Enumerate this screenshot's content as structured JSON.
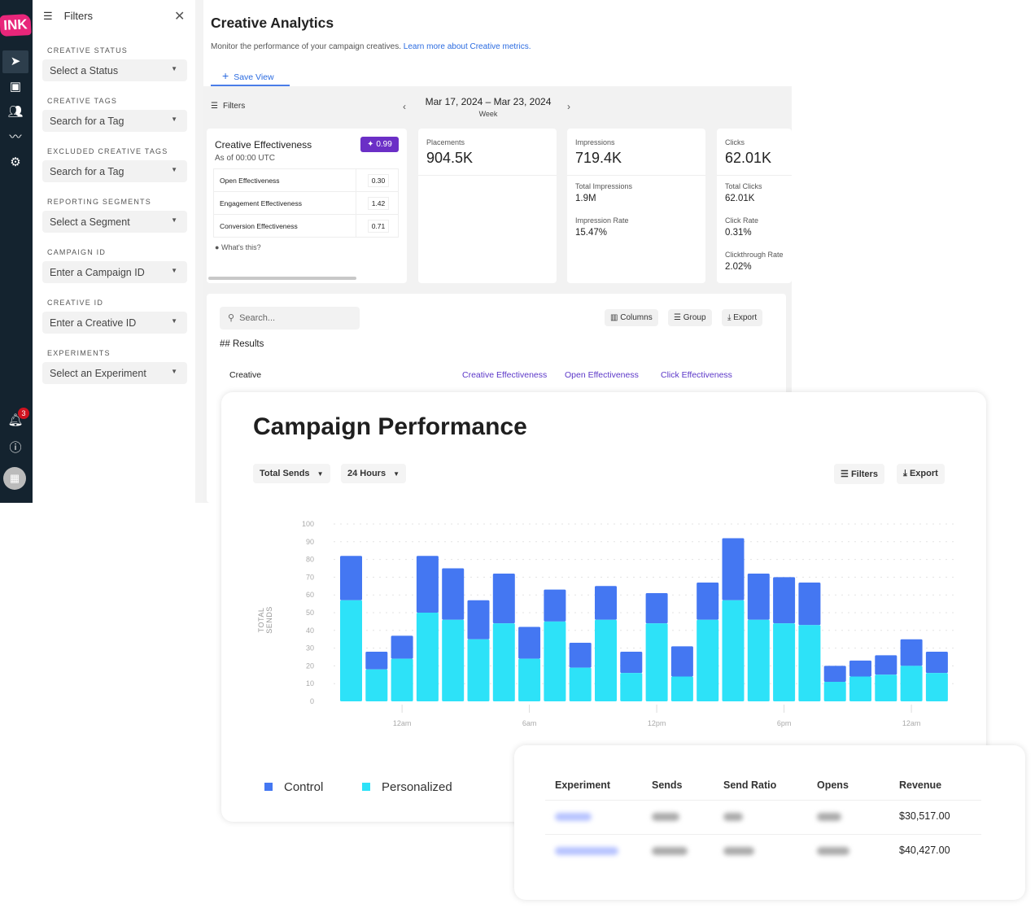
{
  "nav": {
    "logo": "INK",
    "items": [
      "send-icon",
      "gallery-icon",
      "people-icon",
      "trend-icon",
      "gear-icon"
    ],
    "notification_count": "3"
  },
  "filters": {
    "title": "Filters",
    "sections": [
      {
        "label": "CREATIVE STATUS",
        "value": "Select a Status"
      },
      {
        "label": "CREATIVE TAGS",
        "value": "Search for a Tag"
      },
      {
        "label": "EXCLUDED CREATIVE TAGS",
        "value": "Search for a Tag"
      },
      {
        "label": "REPORTING SEGMENTS",
        "value": "Select a Segment"
      },
      {
        "label": "CAMPAIGN ID",
        "value": "Enter a Campaign ID"
      },
      {
        "label": "CREATIVE ID",
        "value": "Enter a Creative ID"
      },
      {
        "label": "EXPERIMENTS",
        "value": "Select an Experiment"
      }
    ]
  },
  "page": {
    "title": "Creative Analytics",
    "subtitle": "Monitor the performance of your campaign creatives.",
    "learn_more": "Learn more about Creative metrics.",
    "save_view": "Save View"
  },
  "toolbar": {
    "filters": "Filters",
    "date_range": "Mar 17, 2024 – Mar 23, 2024",
    "period": "Week"
  },
  "effectiveness": {
    "title": "Creative Effectiveness",
    "as_of": "As of 00:00 UTC",
    "score": "0.99",
    "rows": [
      {
        "label": "Open Effectiveness",
        "value": "0.30"
      },
      {
        "label": "Engagement Effectiveness",
        "value": "1.42"
      },
      {
        "label": "Conversion Effectiveness",
        "value": "0.71"
      }
    ],
    "help": "What's this?"
  },
  "metrics": [
    {
      "label": "Placements",
      "value": "904.5K",
      "details": []
    },
    {
      "label": "Impressions",
      "value": "719.4K",
      "details": [
        {
          "label": "Total Impressions",
          "value": "1.9M"
        },
        {
          "label": "Impression Rate",
          "value": "15.47%"
        }
      ]
    },
    {
      "label": "Clicks",
      "value": "62.01K",
      "details": [
        {
          "label": "Total Clicks",
          "value": "62.01K"
        },
        {
          "label": "Click Rate",
          "value": "0.31%"
        },
        {
          "label": "Clickthrough Rate",
          "value": "2.02%"
        }
      ]
    }
  ],
  "results": {
    "search_placeholder": "Search...",
    "columns_btn": "Columns",
    "group_btn": "Group",
    "export_btn": "Export",
    "heading": "## Results",
    "headers": [
      "Creative",
      "Creative Effectiveness",
      "Open Effectiveness",
      "Click Effectiveness"
    ]
  },
  "campaign": {
    "title": "Campaign Performance",
    "metric_select": "Total Sends",
    "range_select": "24 Hours",
    "filters_btn": "Filters",
    "export_btn": "Export"
  },
  "chart_data": {
    "type": "bar",
    "stacked": true,
    "ylabel": "TOTAL SENDS",
    "ylim": [
      0,
      100
    ],
    "yticks": [
      0,
      10,
      20,
      30,
      40,
      50,
      60,
      70,
      80,
      90,
      100
    ],
    "grid": true,
    "xticks": [
      {
        "index": 2,
        "label": "12am"
      },
      {
        "index": 7,
        "label": "6am"
      },
      {
        "index": 12,
        "label": "12pm"
      },
      {
        "index": 17,
        "label": "6pm"
      },
      {
        "index": 22,
        "label": "12am"
      }
    ],
    "series": [
      {
        "name": "Personalized",
        "color": "#2de2f8",
        "values": [
          57,
          18,
          24,
          50,
          46,
          35,
          44,
          24,
          45,
          19,
          46,
          16,
          44,
          14,
          46,
          57,
          46,
          44,
          43,
          11,
          14,
          15,
          20,
          16
        ]
      },
      {
        "name": "Control",
        "color": "#4477f2",
        "values": [
          25,
          10,
          13,
          32,
          29,
          22,
          28,
          18,
          18,
          14,
          19,
          12,
          17,
          17,
          21,
          35,
          26,
          26,
          24,
          9,
          9,
          11,
          15,
          12
        ]
      }
    ],
    "legend": "bottom-left"
  },
  "experiment_table": {
    "headers": [
      "Experiment",
      "Sends",
      "Send Ratio",
      "Opens",
      "Revenue"
    ],
    "rows": [
      {
        "revenue": "$30,517.00"
      },
      {
        "revenue": "$40,427.00"
      }
    ]
  }
}
